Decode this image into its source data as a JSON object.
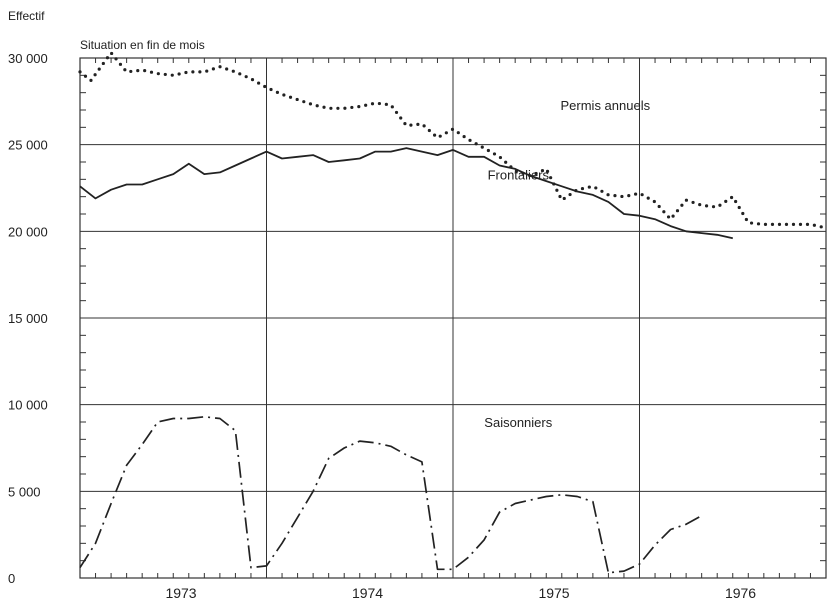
{
  "chart_data": {
    "type": "line",
    "ylabel": "Effectif",
    "subtitle": "Situation en fin de mois",
    "ylim": [
      0,
      30000
    ],
    "yticks": [
      0,
      5000,
      10000,
      15000,
      20000,
      25000,
      30000
    ],
    "ytick_labels": [
      "0",
      "5 000",
      "10 000",
      "15 000",
      "20 000",
      "25 000",
      "30 000"
    ],
    "x_unit": "month index (1 = janvier 1973)",
    "xlim": [
      0,
      48
    ],
    "year_labels": [
      {
        "label": "1973",
        "center": 6.5
      },
      {
        "label": "1974",
        "center": 18.5
      },
      {
        "label": "1975",
        "center": 30.5
      },
      {
        "label": "1976",
        "center": 42.5
      }
    ],
    "year_boundaries": [
      12,
      24,
      36
    ],
    "grid": {
      "horizontal": true,
      "year_vertical": true
    },
    "series": [
      {
        "name": "Permis annuels",
        "style": "dotted",
        "label_at": [
          33.8,
          27000
        ],
        "points": [
          [
            0,
            29200
          ],
          [
            0.7,
            28700
          ],
          [
            2,
            30300
          ],
          [
            3,
            29200
          ],
          [
            4,
            29300
          ],
          [
            5,
            29100
          ],
          [
            6,
            29000
          ],
          [
            7,
            29200
          ],
          [
            8,
            29200
          ],
          [
            9,
            29500
          ],
          [
            10,
            29200
          ],
          [
            11,
            28800
          ],
          [
            12,
            28300
          ],
          [
            13,
            27900
          ],
          [
            14,
            27600
          ],
          [
            15,
            27300
          ],
          [
            16,
            27100
          ],
          [
            17,
            27100
          ],
          [
            18,
            27200
          ],
          [
            19,
            27400
          ],
          [
            20,
            27300
          ],
          [
            21,
            26100
          ],
          [
            22,
            26200
          ],
          [
            23,
            25400
          ],
          [
            24,
            25900
          ],
          [
            25,
            25300
          ],
          [
            26,
            24800
          ],
          [
            27,
            24300
          ],
          [
            28,
            23500
          ],
          [
            29,
            23200
          ],
          [
            30,
            23600
          ],
          [
            31,
            21800
          ],
          [
            32,
            22400
          ],
          [
            33,
            22600
          ],
          [
            34,
            22100
          ],
          [
            35,
            22000
          ],
          [
            36,
            22200
          ],
          [
            37,
            21700
          ],
          [
            38,
            20700
          ],
          [
            39,
            21800
          ],
          [
            40,
            21500
          ],
          [
            41,
            21400
          ],
          [
            42,
            22000
          ],
          [
            43,
            20500
          ],
          [
            44,
            20400
          ],
          [
            45,
            20400
          ],
          [
            46,
            20400
          ],
          [
            47,
            20400
          ],
          [
            48,
            20200
          ]
        ]
      },
      {
        "name": "Frontaliers",
        "style": "solid",
        "label_at": [
          28.2,
          23000
        ],
        "points": [
          [
            0,
            22600
          ],
          [
            1,
            21900
          ],
          [
            2,
            22400
          ],
          [
            3,
            22700
          ],
          [
            4,
            22700
          ],
          [
            5,
            23000
          ],
          [
            6,
            23300
          ],
          [
            7,
            23900
          ],
          [
            8,
            23300
          ],
          [
            9,
            23400
          ],
          [
            10,
            23800
          ],
          [
            11,
            24200
          ],
          [
            12,
            24600
          ],
          [
            13,
            24200
          ],
          [
            14,
            24300
          ],
          [
            15,
            24400
          ],
          [
            16,
            24000
          ],
          [
            17,
            24100
          ],
          [
            18,
            24200
          ],
          [
            19,
            24600
          ],
          [
            20,
            24600
          ],
          [
            21,
            24800
          ],
          [
            22,
            24600
          ],
          [
            23,
            24400
          ],
          [
            24,
            24700
          ],
          [
            25,
            24300
          ],
          [
            26,
            24300
          ],
          [
            27,
            23800
          ],
          [
            28,
            23600
          ],
          [
            29,
            23200
          ],
          [
            30,
            22900
          ],
          [
            31,
            22600
          ],
          [
            32,
            22300
          ],
          [
            33,
            22100
          ],
          [
            34,
            21700
          ],
          [
            35,
            21000
          ],
          [
            36,
            20900
          ],
          [
            37,
            20700
          ],
          [
            38,
            20300
          ],
          [
            39,
            20000
          ],
          [
            40,
            19900
          ],
          [
            41,
            19800
          ],
          [
            42,
            19600
          ]
        ]
      },
      {
        "name": "Saisonniers",
        "style": "dashdot",
        "label_at": [
          28.2,
          8700
        ],
        "points": [
          [
            0,
            600
          ],
          [
            1,
            2000
          ],
          [
            2,
            4300
          ],
          [
            3,
            6500
          ],
          [
            4,
            7700
          ],
          [
            5,
            9000
          ],
          [
            6,
            9200
          ],
          [
            7,
            9200
          ],
          [
            8,
            9300
          ],
          [
            9,
            9200
          ],
          [
            10,
            8500
          ],
          [
            11,
            600
          ],
          [
            12,
            700
          ],
          [
            13,
            2000
          ],
          [
            14,
            3500
          ],
          [
            15,
            5000
          ],
          [
            16,
            6900
          ],
          [
            17,
            7500
          ],
          [
            18,
            7900
          ],
          [
            19,
            7800
          ],
          [
            20,
            7600
          ],
          [
            21,
            7100
          ],
          [
            22,
            6700
          ],
          [
            23,
            500
          ],
          [
            24,
            500
          ],
          [
            25,
            1200
          ],
          [
            26,
            2200
          ],
          [
            27,
            3800
          ],
          [
            28,
            4300
          ],
          [
            29,
            4500
          ],
          [
            30,
            4700
          ],
          [
            31,
            4800
          ],
          [
            32,
            4700
          ],
          [
            33,
            4400
          ],
          [
            34,
            300
          ],
          [
            35,
            400
          ],
          [
            36,
            800
          ],
          [
            37,
            1900
          ],
          [
            38,
            2800
          ],
          [
            39,
            3100
          ],
          [
            40,
            3600
          ]
        ]
      }
    ]
  }
}
